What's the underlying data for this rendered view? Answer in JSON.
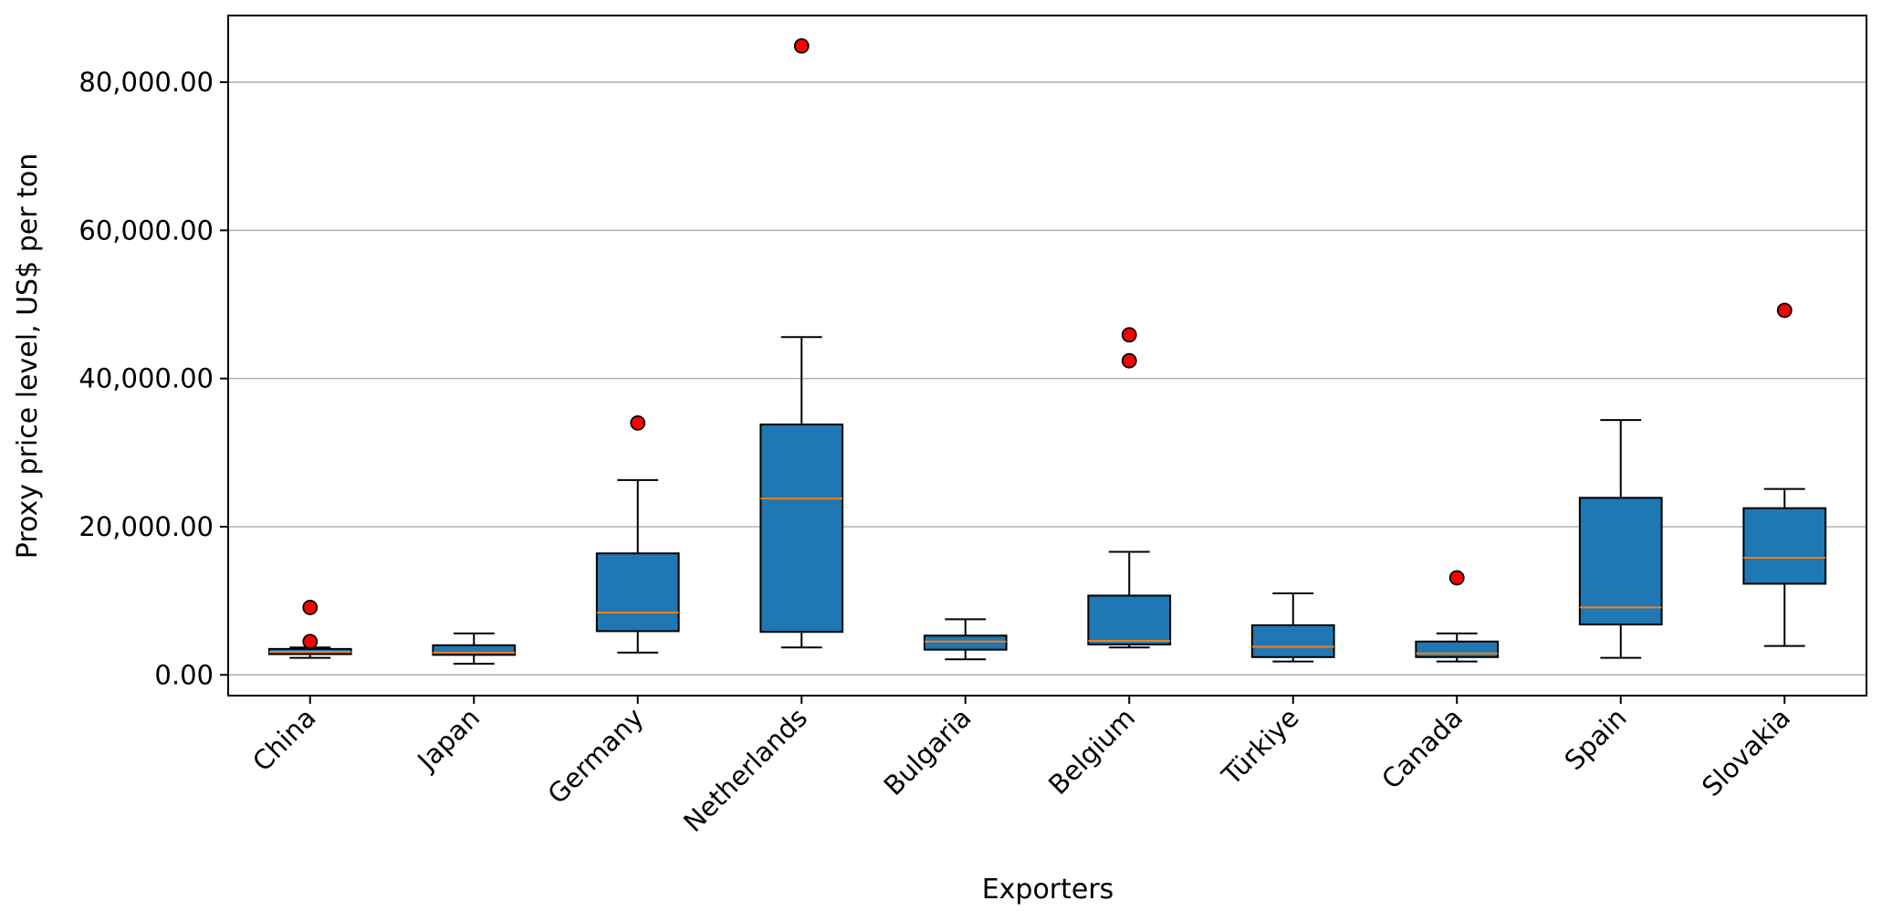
{
  "chart_data": {
    "type": "boxplot",
    "title": "",
    "xlabel": "Exporters",
    "ylabel": "Proxy price level, US$ per ton",
    "ylim": [
      -2800,
      89000
    ],
    "yticks": [
      0,
      20000,
      40000,
      60000,
      80000
    ],
    "ytick_labels": [
      "0.00",
      "20,000.00",
      "40,000.00",
      "60,000.00",
      "80,000.00"
    ],
    "grid": "horizontal",
    "colors": {
      "box_fill": "#1f77b4",
      "median": "#ff7f0e",
      "outlier_fill": "#ff0000",
      "grid": "#b0b0b0",
      "edge": "#000000"
    },
    "categories": [
      "China",
      "Japan",
      "Germany",
      "Netherlands",
      "Bulgaria",
      "Belgium",
      "Türkiye",
      "Canada",
      "Spain",
      "Slovakia"
    ],
    "boxes": [
      {
        "label": "China",
        "whislo": 2300,
        "q1": 2800,
        "med": 3100,
        "q3": 3500,
        "whishi": 3700,
        "fliers": [
          9100,
          4500
        ]
      },
      {
        "label": "Japan",
        "whislo": 1500,
        "q1": 2700,
        "med": 3000,
        "q3": 4000,
        "whishi": 5600,
        "fliers": []
      },
      {
        "label": "Germany",
        "whislo": 3000,
        "q1": 5900,
        "med": 8400,
        "q3": 16400,
        "whishi": 26300,
        "fliers": [
          34000
        ]
      },
      {
        "label": "Netherlands",
        "whislo": 3700,
        "q1": 5800,
        "med": 23800,
        "q3": 33800,
        "whishi": 45600,
        "fliers": [
          84900
        ]
      },
      {
        "label": "Bulgaria",
        "whislo": 2100,
        "q1": 3400,
        "med": 4500,
        "q3": 5300,
        "whishi": 7500,
        "fliers": []
      },
      {
        "label": "Belgium",
        "whislo": 3700,
        "q1": 4100,
        "med": 4600,
        "q3": 10700,
        "whishi": 16600,
        "fliers": [
          45900,
          42400
        ]
      },
      {
        "label": "Türkiye",
        "whislo": 1800,
        "q1": 2400,
        "med": 3800,
        "q3": 6700,
        "whishi": 11000,
        "fliers": []
      },
      {
        "label": "Canada",
        "whislo": 1800,
        "q1": 2400,
        "med": 2900,
        "q3": 4500,
        "whishi": 5600,
        "fliers": [
          13100
        ]
      },
      {
        "label": "Spain",
        "whislo": 2300,
        "q1": 6800,
        "med": 9100,
        "q3": 23900,
        "whishi": 34400,
        "fliers": []
      },
      {
        "label": "Slovakia",
        "whislo": 3900,
        "q1": 12300,
        "med": 15800,
        "q3": 22500,
        "whishi": 25100,
        "fliers": [
          49200
        ]
      }
    ]
  }
}
